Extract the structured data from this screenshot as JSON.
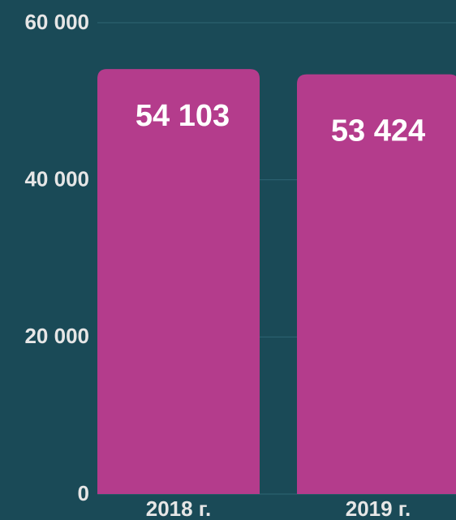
{
  "chart_data": {
    "type": "bar",
    "categories": [
      "2018 г.",
      "2019 г."
    ],
    "values": [
      54103,
      53424
    ],
    "value_labels": [
      "54 103",
      "53 424"
    ],
    "color": "#b43c8c",
    "ylim": [
      0,
      60000
    ],
    "yticks": [
      0,
      {
        "value": 20000,
        "label": "20 000"
      },
      {
        "value": 40000,
        "label": "40 000"
      },
      {
        "value": 60000,
        "label": "60 000"
      }
    ],
    "grid": true
  }
}
